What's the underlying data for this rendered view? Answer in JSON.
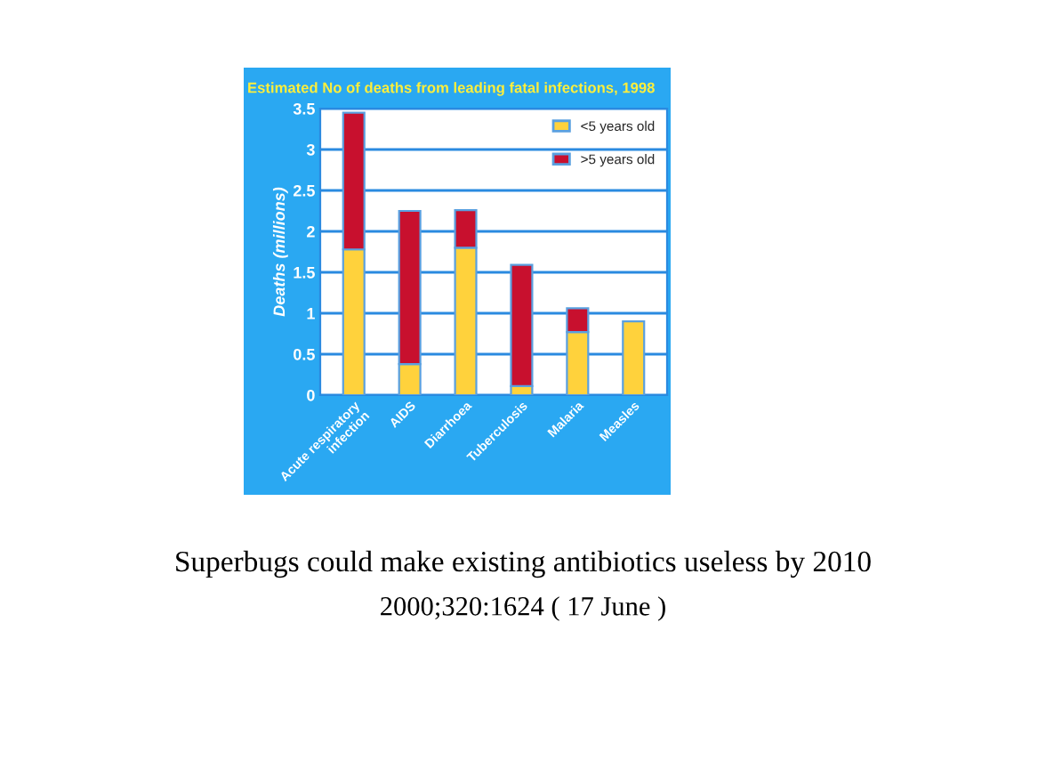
{
  "chart_data": {
    "type": "bar",
    "stacked": true,
    "title": "Estimated No of deaths from leading fatal infections, 1998",
    "ylabel": "Deaths (millions)",
    "categories": [
      "Acute respiratory infection",
      "AIDS",
      "Diarrhoea",
      "Tuberculosis",
      "Malaria",
      "Measles"
    ],
    "series": [
      {
        "name": "<5 years old",
        "color": "#ffd23c",
        "values": [
          1.78,
          0.38,
          1.8,
          0.11,
          0.77,
          0.9
        ]
      },
      {
        "name": ">5 years old",
        "color": "#c8102e",
        "values": [
          1.67,
          1.87,
          0.46,
          1.48,
          0.29,
          null
        ]
      }
    ],
    "ylim": [
      0,
      3.5
    ],
    "yticks": [
      0,
      0.5,
      1,
      1.5,
      2,
      2.5,
      3,
      3.5
    ],
    "grid": "y",
    "legend": "top right",
    "annotations": [
      "Superbugs could make existing antibiotics useless by 2010",
      "2000;320:1624 ( 17 June )"
    ]
  }
}
